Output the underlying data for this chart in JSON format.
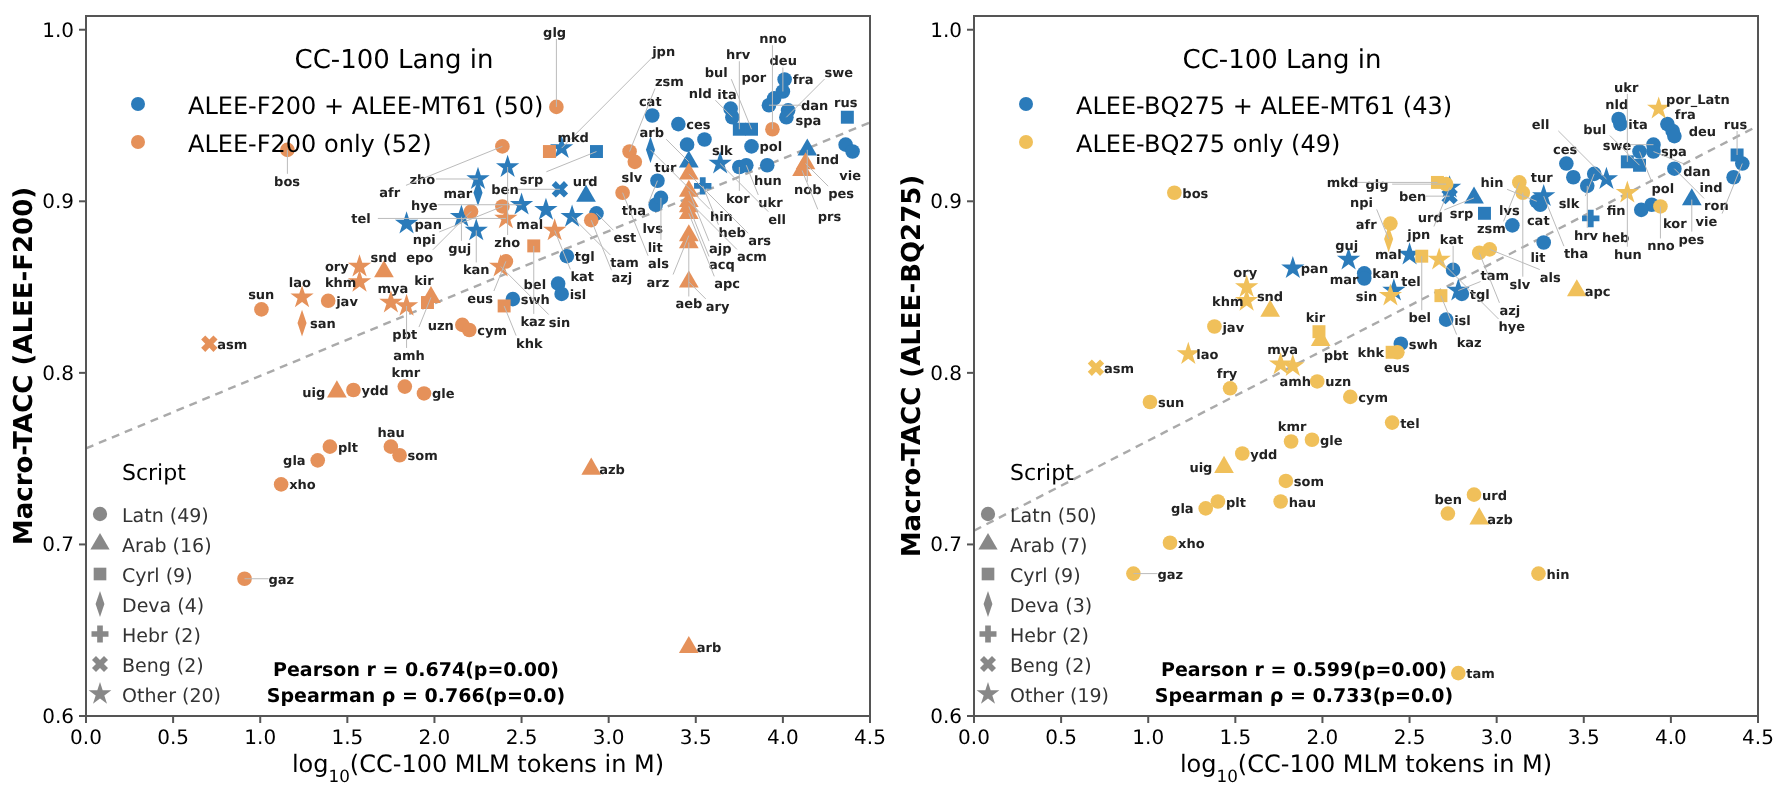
{
  "chart_data": [
    {
      "type": "scatter",
      "xlabel": "log$_{10}$(CC-100 MLM tokens in M)",
      "ylabel": "Macro-TACC (ALEE-F200)",
      "legend_title": "CC-100 Lang in",
      "legend": "top left",
      "xlim": [
        0,
        4.5
      ],
      "ylim": [
        0.6,
        1.008
      ],
      "xticks": [
        {
          "value": 0,
          "label": "0.0"
        },
        {
          "value": 0.5,
          "label": "0.5"
        },
        {
          "value": 1,
          "label": "1.0"
        },
        {
          "value": 1.5,
          "label": "1.5"
        },
        {
          "value": 2,
          "label": "2.0"
        },
        {
          "value": 2.5,
          "label": "2.5"
        },
        {
          "value": 3,
          "label": "3.0"
        },
        {
          "value": 3.5,
          "label": "3.5"
        },
        {
          "value": 4,
          "label": "4.0"
        },
        {
          "value": 4.5,
          "label": "4.5"
        }
      ],
      "yticks": [
        {
          "value": 0.6,
          "label": "0.6"
        },
        {
          "value": 0.7,
          "label": "0.7"
        },
        {
          "value": 0.8,
          "label": "0.8"
        },
        {
          "value": 0.9,
          "label": "0.9"
        },
        {
          "value": 1,
          "label": "1.0"
        }
      ],
      "annotations": [
        "Script",
        "Latn (49)",
        "Arab (16)",
        "Cyrl (9)",
        "Deva (4)",
        "Hebr (2)",
        "Beng (2)",
        "Other (20)",
        "Pearson r = 0.674(p=0.00)",
        "Spearman ρ = 0.766(p=0.0)"
      ],
      "series": [
        {
          "type": "line",
          "color": "#aaaaaa",
          "line_style": "dashed",
          "marker": "none",
          "x": [
            0,
            4.5
          ],
          "values": [
            0.756,
            0.946
          ]
        },
        {
          "name": "ALEE-F200 + ALEE-MT61 (50)",
          "color": "#2b7bba",
          "marker": "circle",
          "x": [
            3.25,
            3.4,
            3.7,
            3.71,
            3.95,
            4.01,
            3.92,
            4.0,
            4.03,
            4.02,
            3.55,
            3.45,
            3.82,
            4.36,
            4.4,
            3.91,
            3.75,
            3.79,
            3.28,
            3.27,
            2.93,
            3.3,
            2.76,
            2.71,
            2.73,
            2.45
          ],
          "values": [
            0.95,
            0.945,
            0.954,
            0.949,
            0.96,
            0.971,
            0.956,
            0.964,
            0.953,
            0.949,
            0.936,
            0.933,
            0.932,
            0.933,
            0.929,
            0.921,
            0.92,
            0.921,
            0.912,
            0.898,
            0.893,
            0.902,
            0.868,
            0.852,
            0.846,
            0.843
          ],
          "value_labels": [
            "cat",
            "ces",
            "ita",
            "nld",
            "por",
            "fra",
            "dan",
            "deu",
            "spa",
            "swe",
            "slk",
            "tur",
            "pol",
            "ind",
            "vie",
            "hun",
            "kor",
            "ukr",
            "tha",
            "lvs",
            "est",
            "lit",
            "tgl",
            "bel",
            "isl",
            "swh"
          ]
        },
        {
          "color": "#2b7bba",
          "marker": "square",
          "x": [
            3.82,
            3.75,
            4.37,
            2.93
          ],
          "values": [
            0.942,
            0.942,
            0.949,
            0.929
          ],
          "value_labels": [
            "bul",
            "hrv",
            "rus",
            "srp"
          ]
        },
        {
          "color": "#2b7bba",
          "marker": "triangle",
          "x": [
            4.14,
            2.87,
            3.46
          ],
          "values": [
            0.93,
            0.903,
            0.923
          ],
          "value_labels": [
            "nob",
            "urd",
            "arb"
          ]
        },
        {
          "color": "#2b7bba",
          "marker": "diamond",
          "x": [
            3.24,
            2.25
          ],
          "values": [
            0.93,
            0.905
          ],
          "value_labels": [
            "hin",
            "mar"
          ]
        },
        {
          "color": "#2b7bba",
          "marker": "plus",
          "x": [
            3.54
          ],
          "values": [
            0.909
          ],
          "value_labels": [
            "heb"
          ]
        },
        {
          "color": "#2b7bba",
          "marker": "cross",
          "x": [
            2.72
          ],
          "values": [
            0.907
          ],
          "value_labels": [
            "ben"
          ]
        },
        {
          "color": "#2b7bba",
          "marker": "star",
          "x": [
            2.73,
            2.42,
            2.25,
            1.84,
            2.155,
            2.24,
            2.5,
            2.64,
            2.79,
            3.64
          ],
          "values": [
            0.931,
            0.92,
            0.913,
            0.887,
            0.891,
            0.883,
            0.898,
            0.895,
            0.891,
            0.922
          ],
          "value_labels": [
            "jpn",
            "zho",
            "zho",
            "pan",
            "guj",
            "kan",
            "hye",
            "mal",
            "tam",
            "ell"
          ]
        },
        {
          "name": "ALEE-F200 only (52)",
          "color": "#e5915a",
          "marker": "circle",
          "x": [
            1.156,
            2.7,
            2.39,
            3.12,
            3.15,
            2.39,
            2.21,
            2.41,
            3.08,
            2.9,
            3.94,
            1.39,
            1.007,
            2.16,
            2.2,
            1.535,
            1.83,
            1.94,
            1.4,
            1.33,
            1.75,
            1.8,
            1.12,
            0.91
          ],
          "values": [
            0.93,
            0.955,
            0.932,
            0.929,
            0.923,
            0.897,
            0.894,
            0.865,
            0.905,
            0.889,
            0.942,
            0.842,
            0.837,
            0.828,
            0.825,
            0.79,
            0.792,
            0.788,
            0.757,
            0.749,
            0.757,
            0.752,
            0.735,
            0.68
          ],
          "value_labels": [
            "bos",
            "glg",
            "afr",
            "zsm",
            "slv",
            "npi",
            "epo",
            "eus",
            "als",
            "azj",
            "nno",
            "jav",
            "sun",
            "uzn",
            "cym",
            "ydd",
            "kmr",
            "gle",
            "plt",
            "gla",
            "hau",
            "som",
            "xho",
            "gaz"
          ]
        },
        {
          "color": "#e5915a",
          "marker": "square",
          "x": [
            2.66,
            2.57,
            2.4,
            1.96
          ],
          "values": [
            0.929,
            0.874,
            0.839,
            0.841
          ],
          "value_labels": [
            "mkd",
            "kaz",
            "khk",
            "kir"
          ]
        },
        {
          "color": "#e5915a",
          "marker": "triangle",
          "x": [
            4.13,
            4.11,
            3.46,
            3.46,
            3.46,
            3.46,
            3.46,
            3.46,
            3.46,
            3.46,
            1.98,
            1.71,
            1.44,
            2.9,
            3.46
          ],
          "values": [
            0.922,
            0.918,
            0.916,
            0.906,
            0.9,
            0.897,
            0.893,
            0.88,
            0.876,
            0.853,
            0.844,
            0.859,
            0.789,
            0.744,
            0.64
          ],
          "value_labels": [
            "pes",
            "prs",
            "ars",
            "ajp",
            "acm",
            "acq",
            "apc",
            "arz",
            "aeb",
            "ary",
            "pbt",
            "snd",
            "uig",
            "azb",
            "arb"
          ]
        },
        {
          "color": "#e5915a",
          "marker": "diamond",
          "x": [
            1.24
          ],
          "values": [
            0.829
          ],
          "value_labels": [
            "san"
          ]
        },
        {
          "color": "#e5915a",
          "marker": "cross",
          "x": [
            0.708
          ],
          "values": [
            0.817
          ],
          "value_labels": [
            "asm"
          ]
        },
        {
          "color": "#e5915a",
          "marker": "star",
          "x": [
            2.69,
            2.41,
            2.38,
            1.75,
            1.84,
            1.57,
            1.57,
            1.24
          ],
          "values": [
            0.883,
            0.89,
            0.862,
            0.841,
            0.839,
            0.862,
            0.853,
            0.844
          ],
          "value_labels": [
            "kat",
            "tel",
            "sin",
            "mya",
            "amh",
            "ory",
            "khm",
            "lao"
          ]
        }
      ]
    },
    {
      "type": "scatter",
      "xlabel": "log$_{10}$(CC-100 MLM tokens in M)",
      "ylabel": "Macro-TACC (ALEE-BQ275)",
      "legend_title": "CC-100 Lang in",
      "legend": "top left",
      "xlim": [
        0,
        4.5
      ],
      "ylim": [
        0.6,
        1.008
      ],
      "xticks": [
        {
          "value": 0,
          "label": "0.0"
        },
        {
          "value": 0.5,
          "label": "0.5"
        },
        {
          "value": 1,
          "label": "1.0"
        },
        {
          "value": 1.5,
          "label": "1.5"
        },
        {
          "value": 2,
          "label": "2.0"
        },
        {
          "value": 2.5,
          "label": "2.5"
        },
        {
          "value": 3,
          "label": "3.0"
        },
        {
          "value": 3.5,
          "label": "3.5"
        },
        {
          "value": 4,
          "label": "4.0"
        },
        {
          "value": 4.5,
          "label": "4.5"
        }
      ],
      "yticks": [
        {
          "value": 0.6,
          "label": "0.6"
        },
        {
          "value": 0.7,
          "label": "0.7"
        },
        {
          "value": 0.8,
          "label": "0.8"
        },
        {
          "value": 0.9,
          "label": "0.9"
        },
        {
          "value": 1,
          "label": "1.0"
        }
      ],
      "annotations": [
        "Script",
        "Latn (50)",
        "Arab (7)",
        "Cyrl (9)",
        "Deva (3)",
        "Hebr (2)",
        "Beng (2)",
        "Other (19)",
        "Pearson r = 0.599(p=0.00)",
        "Spearman ρ = 0.733(p=0.0)"
      ],
      "series": [
        {
          "type": "line",
          "color": "#aaaaaa",
          "line_style": "dashed",
          "marker": "none",
          "x": [
            0,
            4.5
          ],
          "values": [
            0.708,
            0.944
          ]
        },
        {
          "name": "ALEE-BQ275 + ALEE-MT61 (43)",
          "color": "#2b7bba",
          "marker": "circle",
          "x": [
            3.71,
            3.7,
            3.98,
            4.01,
            4.02,
            3.9,
            3.9,
            3.82,
            4.02,
            4.41,
            4.36,
            3.89,
            3.83,
            3.4,
            3.44,
            3.56,
            3.52,
            3.25,
            3.23,
            3.09,
            3.27,
            2.24,
            2.24,
            2.75,
            2.8,
            2.71,
            2.45
          ],
          "values": [
            0.945,
            0.948,
            0.945,
            0.941,
            0.938,
            0.933,
            0.929,
            0.929,
            0.919,
            0.922,
            0.914,
            0.898,
            0.895,
            0.922,
            0.914,
            0.916,
            0.909,
            0.898,
            0.9,
            0.886,
            0.876,
            0.858,
            0.855,
            0.86,
            0.846,
            0.831,
            0.817
          ],
          "value_labels": [
            "ita",
            "nld",
            "fra",
            "deu",
            "spa",
            "swe",
            "dan",
            "pol",
            "ron",
            "vie",
            "ind",
            "kor",
            "fin",
            "ces",
            "tur",
            "slk",
            "hrv",
            "cat",
            "hin",
            "lvs",
            "lit",
            "kan",
            "mar",
            "kat",
            "tgl",
            "isl",
            "swh"
          ]
        },
        {
          "color": "#2b7bba",
          "marker": "square",
          "x": [
            3.82,
            3.75,
            4.38,
            2.93
          ],
          "values": [
            0.921,
            0.923,
            0.927,
            0.893
          ],
          "value_labels": [
            "bul",
            "ukr",
            "rus",
            "srp"
          ]
        },
        {
          "color": "#2b7bba",
          "marker": "triangle",
          "x": [
            4.12,
            2.87
          ],
          "values": [
            0.901,
            0.902
          ],
          "value_labels": [
            "pes",
            "urd"
          ]
        },
        {
          "color": "#2b7bba",
          "marker": "plus",
          "x": [
            3.54
          ],
          "values": [
            0.89
          ],
          "value_labels": [
            "heb"
          ]
        },
        {
          "color": "#2b7bba",
          "marker": "cross",
          "x": [
            2.73
          ],
          "values": [
            0.903
          ],
          "value_labels": [
            "ben"
          ]
        },
        {
          "color": "#2b7bba",
          "marker": "star",
          "x": [
            2.73,
            3.27,
            3.63,
            2.5,
            2.15,
            1.83,
            2.41,
            2.78
          ],
          "values": [
            0.908,
            0.903,
            0.913,
            0.869,
            0.866,
            0.861,
            0.848,
            0.848
          ],
          "value_labels": [
            "jpn",
            "tha",
            "ell",
            "mal",
            "guj",
            "pan",
            "tel",
            "tam"
          ]
        },
        {
          "name": "ALEE-BQ275 only (49)",
          "color": "#f0c05a",
          "marker": "circle",
          "x": [
            1.15,
            2.71,
            3.13,
            3.15,
            2.39,
            2.96,
            2.9,
            3.94,
            2.43,
            1.38,
            1.47,
            1.97,
            1.01,
            2.16,
            2.4,
            1.54,
            1.82,
            1.94,
            1.79,
            1.4,
            1.33,
            1.76,
            1.125,
            0.915,
            2.87,
            2.72,
            3.24,
            2.78
          ],
          "values": [
            0.905,
            0.91,
            0.911,
            0.905,
            0.887,
            0.872,
            0.87,
            0.897,
            0.812,
            0.827,
            0.791,
            0.795,
            0.783,
            0.786,
            0.771,
            0.753,
            0.76,
            0.761,
            0.737,
            0.725,
            0.721,
            0.725,
            0.701,
            0.683,
            0.729,
            0.718,
            0.683,
            0.625
          ],
          "value_labels": [
            "bos",
            "glg",
            "zsm",
            "slv",
            "afr",
            "als",
            "azj",
            "nno",
            "eus",
            "jav",
            "fry",
            "uzn",
            "sun",
            "cym",
            "tel",
            "ydd",
            "kmr",
            "gle",
            "som",
            "plt",
            "gla",
            "hau",
            "xho",
            "gaz",
            "urd",
            "ben",
            "hin",
            "tam"
          ]
        },
        {
          "color": "#f0c05a",
          "marker": "square",
          "x": [
            2.66,
            2.57,
            2.68,
            2.4,
            1.98
          ],
          "values": [
            0.911,
            0.868,
            0.845,
            0.812,
            0.824
          ],
          "value_labels": [
            "mkd",
            "bel",
            "kaz",
            "khk",
            "kir"
          ]
        },
        {
          "color": "#f0c05a",
          "marker": "triangle",
          "x": [
            3.46,
            1.7,
            1.99,
            1.435,
            2.9
          ],
          "values": [
            0.848,
            0.836,
            0.819,
            0.745,
            0.715
          ],
          "value_labels": [
            "apc",
            "snd",
            "pbt",
            "uig",
            "azb"
          ]
        },
        {
          "color": "#f0c05a",
          "marker": "diamond",
          "x": [
            2.38
          ],
          "values": [
            0.878
          ],
          "value_labels": [
            "npi"
          ]
        },
        {
          "color": "#f0c05a",
          "marker": "cross",
          "x": [
            0.7
          ],
          "values": [
            0.803
          ],
          "value_labels": [
            "asm"
          ]
        },
        {
          "color": "#f0c05a",
          "marker": "star",
          "x": [
            3.93,
            3.75,
            2.67,
            2.39,
            1.565,
            1.565,
            1.23,
            1.76,
            1.83
          ],
          "values": [
            0.954,
            0.905,
            0.866,
            0.845,
            0.85,
            0.842,
            0.811,
            0.805,
            0.804
          ],
          "value_labels": [
            "por_Latn",
            "hun",
            "hye",
            "sin",
            "ory",
            "khm",
            "lao",
            "mya",
            "amh"
          ]
        }
      ]
    }
  ]
}
